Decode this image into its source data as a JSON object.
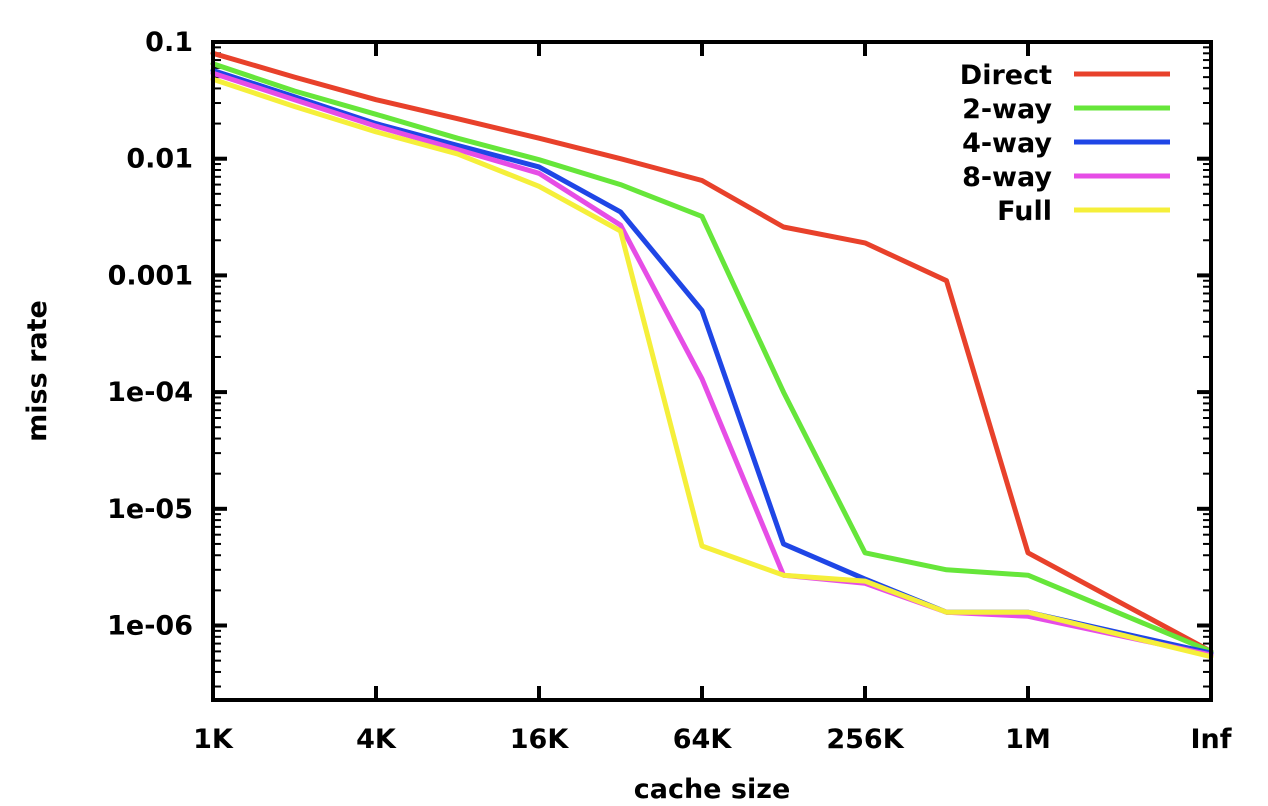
{
  "chart_data": {
    "type": "line",
    "title": "",
    "xlabel": "cache size",
    "ylabel": "miss rate",
    "xscale": "log2",
    "yscale": "log",
    "x_ticks": [
      "1K",
      "4K",
      "16K",
      "64K",
      "256K",
      "1M",
      "Inf"
    ],
    "y_ticks": [
      "0.1",
      "0.01",
      "0.001",
      "1e-04",
      "1e-05",
      "1e-06"
    ],
    "x": [
      "1K",
      "2K",
      "4K",
      "8K",
      "16K",
      "32K",
      "64K",
      "128K",
      "256K",
      "512K",
      "1M",
      "Inf"
    ],
    "ylim": [
      2e-07,
      0.1
    ],
    "grid": false,
    "legend_position": "top-right",
    "series": [
      {
        "name": "Direct",
        "color": "#e8412b",
        "values": [
          0.08,
          0.05,
          0.032,
          0.022,
          0.015,
          0.01,
          0.0065,
          0.0026,
          0.0019,
          0.0009,
          4.2e-06,
          6e-07
        ]
      },
      {
        "name": "2-way",
        "color": "#66e63a",
        "values": [
          0.065,
          0.038,
          0.024,
          0.015,
          0.0098,
          0.006,
          0.0032,
          0.0001,
          4.2e-06,
          3e-06,
          2.7e-06,
          6e-07
        ]
      },
      {
        "name": "4-way",
        "color": "#1f46e6",
        "values": [
          0.057,
          0.034,
          0.02,
          0.013,
          0.0085,
          0.0035,
          0.0005,
          5e-06,
          2.5e-06,
          1.3e-06,
          1.3e-06,
          5.8e-07
        ]
      },
      {
        "name": "8-way",
        "color": "#e64de6",
        "values": [
          0.054,
          0.032,
          0.019,
          0.012,
          0.0075,
          0.0027,
          0.00013,
          2.7e-06,
          2.3e-06,
          1.3e-06,
          1.2e-06,
          5.6e-07
        ]
      },
      {
        "name": "Full",
        "color": "#f5ef3a",
        "values": [
          0.048,
          0.028,
          0.017,
          0.011,
          0.0058,
          0.0024,
          4.8e-06,
          2.7e-06,
          2.4e-06,
          1.3e-06,
          1.3e-06,
          5.4e-07
        ]
      }
    ]
  }
}
